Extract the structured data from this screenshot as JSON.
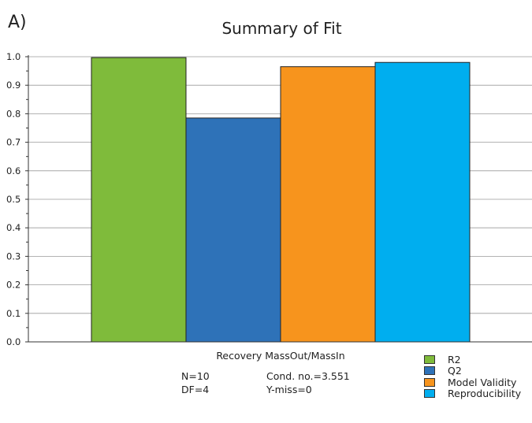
{
  "panel_label": "A)",
  "chart_data": {
    "type": "bar",
    "title": "Summary of Fit",
    "xlabel": "Recovery MassOut/MassIn",
    "ylim": [
      0,
      1.0
    ],
    "yticks": [
      "0.0",
      "0.1",
      "0.2",
      "0.3",
      "0.4",
      "0.5",
      "0.6",
      "0.7",
      "0.8",
      "0.9",
      "1.0"
    ],
    "grid": true,
    "legend_position": "bottom-right",
    "series": [
      {
        "name": "R2",
        "values": [
          0.997
        ],
        "color": "#7fbb3b"
      },
      {
        "name": "Q2",
        "values": [
          0.785
        ],
        "color": "#2e72b8"
      },
      {
        "name": "Model Validity",
        "values": [
          0.965
        ],
        "color": "#f7941d"
      },
      {
        "name": "Reproducibility",
        "values": [
          0.98
        ],
        "color": "#00aeef"
      }
    ]
  },
  "stats": {
    "n": "N=10",
    "df": "DF=4",
    "cond": "Cond. no.=3.551",
    "ymiss": "Y-miss=0"
  }
}
